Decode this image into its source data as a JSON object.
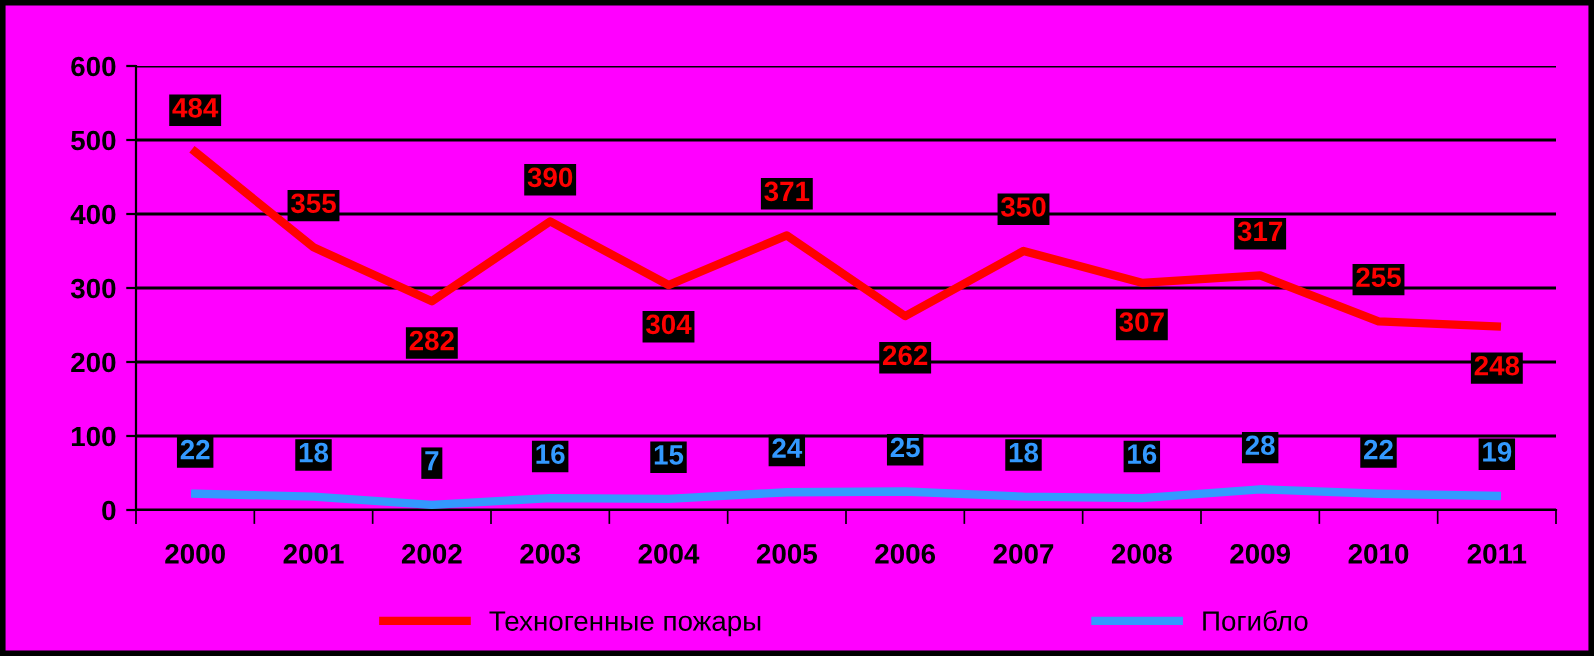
{
  "chart_data": {
    "type": "line",
    "categories": [
      "2000",
      "2001",
      "2002",
      "2003",
      "2004",
      "2005",
      "2006",
      "2007",
      "2008",
      "2009",
      "2010",
      "2011"
    ],
    "series": [
      {
        "name": "Техногенные пожары",
        "color": "#ff0000",
        "values": [
          484,
          355,
          282,
          390,
          304,
          371,
          262,
          350,
          307,
          317,
          255,
          248
        ]
      },
      {
        "name": "Погибло",
        "color": "#3399ff",
        "values": [
          22,
          18,
          7,
          16,
          15,
          24,
          25,
          18,
          16,
          28,
          22,
          19
        ]
      }
    ],
    "ylim": [
      0,
      600
    ],
    "yticks": [
      0,
      100,
      200,
      300,
      400,
      500,
      600
    ],
    "grid": "y",
    "legend": "bottom",
    "marker": "none",
    "line_style": "solid",
    "data_labels": true
  }
}
